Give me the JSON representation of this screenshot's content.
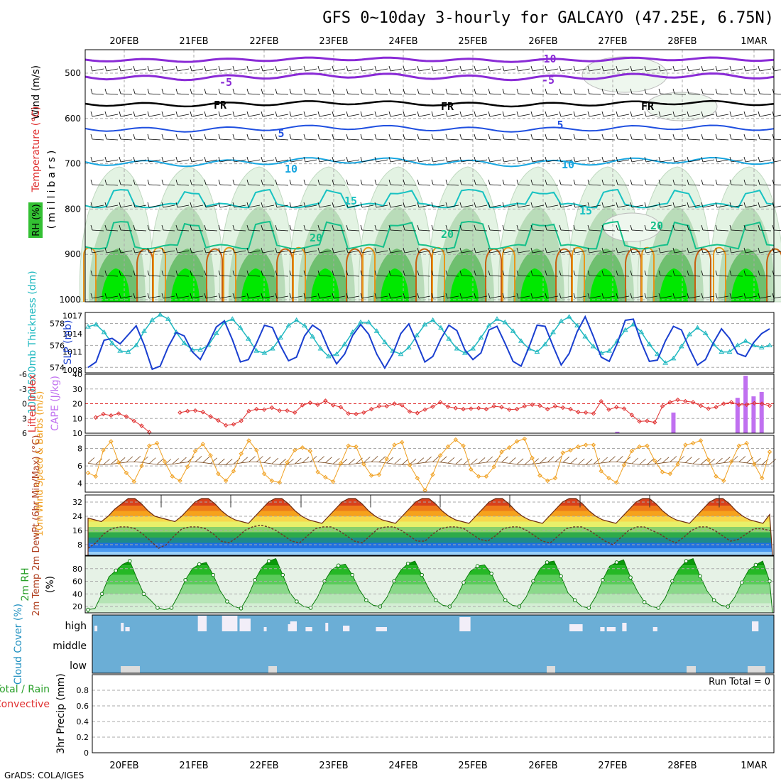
{
  "title": "GFS 0~10day 3-hourly for GALCAYO (47.25E, 6.75N)",
  "credit": "GrADS: COLA/IGES",
  "date_labels": [
    "20FEB",
    "21FEB",
    "22FEB",
    "23FEB",
    "24FEB",
    "25FEB",
    "26FEB",
    "27FEB",
    "28FEB",
    "1MAR"
  ],
  "colors": {
    "rh_light": "#e3f3e3",
    "rh_mid": "#b9dcb9",
    "rh_dark": "#6fbf6f",
    "rh_bright": "#00e800",
    "purple": "#8a2bd6",
    "black": "#000000",
    "blue": "#1f4fe0",
    "lightblue": "#18a6e0",
    "teal": "#18c2c2",
    "seagreen": "#16c08a",
    "orange": "#e8961a",
    "darkorange": "#c86010",
    "thickness": "#1fb8c0",
    "slp": "#1a3fd0",
    "lifted": "#e03030",
    "cape": "#c070f0",
    "wind": "#f0a020",
    "cloud_bg": "#6baed6",
    "precip_grid": "#aaaaaa"
  },
  "panels": {
    "pressure": {
      "ylabel_wind": "Wind (m/s)",
      "ylabel_temp": "Temperature (°C)",
      "ylabel_mb": "(millibars)",
      "ylabel_rh": "RH (%)",
      "ticks": [
        "500",
        "600",
        "700",
        "800",
        "900",
        "1000"
      ],
      "contour_labels": [
        "-10",
        "-5",
        "-5",
        "FR",
        "FR",
        "FR",
        "5",
        "5",
        "10",
        "10",
        "15",
        "15",
        "20",
        "20",
        "20"
      ]
    },
    "thickness": {
      "ylabel_left": "1000-500mb Thickness (dm)",
      "ylabel_right": "SLP (mb)",
      "left_ticks": [
        "578",
        "576",
        "574"
      ],
      "right_ticks": [
        "1017",
        "1014",
        "1011",
        "1008"
      ]
    },
    "stability": {
      "ylabel_left": "Lifted Index",
      "ylabel_right": "CAPE (J/kg)",
      "left_ticks": [
        "-6",
        "-3",
        "0",
        "3",
        "6"
      ],
      "right_ticks": [
        "40",
        "30",
        "20",
        "10",
        "10"
      ]
    },
    "wind10": {
      "ylabel": "10m Wind Speed & Barbs (m/s)",
      "ticks": [
        "8",
        "6",
        "4"
      ]
    },
    "temp2m": {
      "ylabel": "2m Temp 2m DewPt (6hr Min/Max) (°C)",
      "ticks": [
        "32",
        "24",
        "16",
        "8"
      ]
    },
    "rh2m": {
      "ylabel_left": "2m RH",
      "ylabel_right": "(%)",
      "ticks": [
        "80",
        "60",
        "40",
        "20"
      ]
    },
    "cloud": {
      "ylabel": "Cloud Cover (%)",
      "levels": [
        "high",
        "middle",
        "low"
      ]
    },
    "precip": {
      "ylabel_a": "Total / Rain",
      "ylabel_b": "Convective",
      "ylabel_c": "3hr Precip (mm)",
      "ticks": [
        "0.8",
        "0.6",
        "0.4",
        "0.2",
        "0"
      ],
      "run_total": "Run Total = 0"
    }
  },
  "chart_data": [
    {
      "type": "line",
      "name": "1000-500mb Thickness (dm)",
      "x_unit": "3-hourly steps from 19FEB 12Z",
      "ylim": [
        573.5,
        579
      ],
      "values": [
        577.7,
        577.9,
        577.2,
        576.2,
        575.5,
        575.4,
        576.0,
        577.3,
        578.3,
        578.8,
        578.4,
        577.2,
        576.2,
        575.6,
        575.6,
        576.0,
        577.1,
        578.1,
        578.4,
        577.6,
        576.6,
        575.5,
        575.3,
        575.7,
        576.7,
        577.8,
        578.3,
        577.8,
        576.8,
        575.7,
        575.0,
        575.2,
        576.1,
        577.2,
        578.1,
        578.1,
        577.3,
        576.3,
        575.5,
        575.2,
        575.8,
        576.9,
        577.9,
        578.3,
        577.6,
        576.6,
        575.7,
        575.3,
        575.7,
        576.7,
        577.8,
        578.4,
        578.1,
        577.3,
        576.4,
        575.7,
        575.4,
        576.1,
        577.2,
        578.2,
        578.6,
        577.8,
        576.8,
        575.9,
        575.3,
        575.5,
        576.4,
        577.4,
        577.9,
        577.2,
        576.1,
        575.2,
        574.4,
        574.8,
        575.9,
        577.0,
        577.6,
        577.1,
        576.1,
        575.4,
        575.4,
        576.0,
        576.4,
        576.0,
        575.8,
        576.0
      ]
    },
    {
      "type": "line",
      "name": "SLP (mb)",
      "ylim": [
        1007.5,
        1017.5
      ],
      "values": [
        1008.4,
        1009.3,
        1012.9,
        1013.2,
        1012.3,
        1013.8,
        1015.3,
        1012.1,
        1008.1,
        1008.6,
        1011.8,
        1014.2,
        1013.6,
        1011.0,
        1009.7,
        1012.3,
        1015.1,
        1016.1,
        1013.0,
        1009.3,
        1009.7,
        1012.4,
        1015.4,
        1015.0,
        1012.0,
        1009.5,
        1010.1,
        1013.6,
        1015.4,
        1014.5,
        1011.4,
        1009.0,
        1010.6,
        1013.7,
        1015.5,
        1013.9,
        1010.6,
        1008.3,
        1010.6,
        1014.0,
        1015.6,
        1012.5,
        1009.3,
        1010.2,
        1013.1,
        1015.4,
        1014.5,
        1011.3,
        1009.7,
        1010.8,
        1014.6,
        1015.2,
        1012.4,
        1009.4,
        1008.6,
        1011.8,
        1015.4,
        1015.2,
        1011.9,
        1008.8,
        1010.7,
        1014.3,
        1016.8,
        1013.6,
        1010.1,
        1009.4,
        1012.4,
        1016.2,
        1016.4,
        1012.5,
        1009.4,
        1009.6,
        1012.8,
        1015.2,
        1014.6,
        1011.5,
        1008.8,
        1009.7,
        1012.5,
        1014.8,
        1013.2,
        1010.7,
        1010.2,
        1012.5,
        1014.0,
        1014.8
      ]
    },
    {
      "type": "line",
      "name": "Lifted Index",
      "ylim": [
        6,
        -6
      ],
      "values": [
        null,
        2.8,
        2.1,
        2.4,
        2.0,
        2.6,
        3.5,
        4.5,
        5.8,
        null,
        null,
        null,
        1.8,
        1.5,
        1.4,
        1.7,
        2.6,
        3.4,
        4.4,
        4.2,
        3.5,
        1.5,
        1.1,
        1.2,
        0.8,
        1.4,
        1.4,
        1.8,
        0.3,
        -0.2,
        0.2,
        -0.6,
        0.3,
        0.7,
        2.0,
        2.1,
        1.8,
        1.1,
        0.5,
        0.5,
        0.0,
        0.3,
        1.6,
        1.9,
        1.2,
        0.6,
        -0.3,
        0.6,
        0.9,
        1.1,
        1.0,
        0.9,
        1.1,
        0.5,
        0.7,
        1.2,
        1.1,
        0.5,
        0.2,
        0.4,
        1.1,
        0.5,
        0.8,
        1.1,
        1.7,
        1.8,
        2.0,
        -0.5,
        1.2,
        0.7,
        1.0,
        2.3,
        3.6,
        3.5,
        3.8,
        0.5,
        -0.3,
        -0.8,
        -0.5,
        -0.3,
        0.4,
        1.0,
        0.7,
        0.0,
        -0.3,
        0.2,
        0.2,
        -0.1,
        0.0,
        0.4
      ]
    },
    {
      "type": "bar",
      "name": "CAPE (J/kg)",
      "x": [
        66,
        73,
        81,
        82,
        83,
        84,
        85
      ],
      "values": [
        1,
        14,
        24,
        39,
        25,
        28,
        0
      ]
    },
    {
      "type": "line",
      "name": "10m Wind Speed (m/s)",
      "ylim": [
        3,
        9.5
      ],
      "values": [
        5.2,
        4.8,
        7.8,
        8.8,
        6.4,
        5.2,
        4.2,
        6.0,
        8.3,
        8.6,
        6.5,
        4.8,
        4.3,
        5.9,
        7.7,
        8.5,
        7.2,
        5.1,
        4.3,
        5.4,
        7.4,
        8.9,
        7.8,
        5.1,
        4.3,
        4.1,
        6.4,
        7.8,
        8.1,
        7.7,
        5.3,
        4.7,
        4.2,
        6.3,
        8.3,
        8.2,
        6.2,
        4.9,
        5.0,
        6.8,
        8.4,
        8.7,
        6.1,
        4.6,
        3.2,
        5.0,
        7.2,
        8.2,
        9.0,
        8.3,
        5.6,
        4.8,
        4.8,
        5.9,
        7.6,
        8.1,
        8.8,
        9.1,
        6.9,
        4.9,
        4.3,
        4.6,
        7.5,
        7.8,
        8.2,
        8.4,
        8.4,
        5.4,
        4.6,
        4.1,
        6.1,
        7.7,
        8.2,
        8.3,
        6.6,
        5.3,
        5.1,
        6.2,
        8.4,
        8.6,
        8.9,
        6.7,
        4.8,
        4.3,
        6.5,
        8.3,
        8.6,
        6.2,
        4.6,
        7.6
      ]
    },
    {
      "type": "area",
      "name": "2m Temp (°C)",
      "ylim": [
        2,
        36
      ],
      "values": [
        23,
        22,
        21,
        24,
        28,
        31,
        34,
        34,
        31,
        27,
        24,
        23,
        22,
        21,
        24,
        28,
        32,
        34,
        34,
        31,
        27,
        24,
        22,
        21,
        20,
        24,
        28,
        32,
        34,
        34,
        31,
        27,
        24,
        22,
        21,
        20,
        24,
        28,
        32,
        34,
        34,
        31,
        27,
        24,
        22,
        21,
        20,
        24,
        28,
        32,
        34,
        34,
        31,
        27,
        24,
        22,
        21,
        20,
        24,
        28,
        32,
        34,
        34,
        31,
        27,
        24,
        22,
        21,
        20,
        24,
        28,
        32,
        34,
        34,
        31,
        27,
        24,
        22,
        21,
        20,
        24,
        28,
        32,
        34,
        34,
        31,
        27,
        24,
        22,
        21,
        20,
        24,
        28,
        32,
        34,
        34,
        31,
        27,
        24,
        22,
        21,
        20,
        25
      ]
    },
    {
      "type": "line",
      "name": "2m DewPt (°C)",
      "ylim": [
        2,
        36
      ],
      "values": [
        6,
        9,
        14,
        17,
        18,
        18,
        17,
        14,
        10,
        6,
        8,
        13,
        17,
        18,
        18,
        17,
        14,
        10,
        9,
        12,
        16,
        18,
        19,
        18,
        16,
        13,
        10,
        9,
        13,
        17,
        18,
        18,
        16,
        13,
        10,
        9,
        13,
        17,
        18,
        18,
        16,
        13,
        10,
        10,
        14,
        17,
        18,
        18,
        17,
        14,
        11,
        10,
        13,
        17,
        18,
        18,
        16,
        13,
        10,
        9,
        13,
        17,
        18,
        18,
        16,
        13,
        10,
        8,
        12,
        16,
        18,
        18,
        16,
        14,
        11,
        9,
        12,
        16,
        18,
        18,
        16,
        13,
        10,
        11,
        14,
        17,
        17,
        16
      ]
    },
    {
      "type": "area",
      "name": "2m RH (%)",
      "ylim": [
        10,
        100
      ],
      "values": [
        15,
        17,
        40,
        67,
        77,
        87,
        92,
        65,
        40,
        30,
        18,
        15,
        18,
        38,
        62,
        80,
        87,
        90,
        70,
        45,
        28,
        20,
        17,
        36,
        62,
        82,
        92,
        96,
        70,
        42,
        28,
        20,
        18,
        35,
        60,
        78,
        85,
        87,
        70,
        47,
        30,
        22,
        20,
        35,
        60,
        78,
        88,
        92,
        70,
        48,
        30,
        22,
        20,
        35,
        58,
        76,
        84,
        86,
        72,
        48,
        30,
        22,
        20,
        35,
        60,
        80,
        90,
        92,
        68,
        42,
        30,
        20,
        18,
        36,
        62,
        84,
        90,
        94,
        66,
        44,
        27,
        20,
        18,
        34,
        60,
        80,
        92,
        96,
        68,
        45,
        30,
        22,
        20,
        35,
        58,
        78,
        86,
        92,
        60
      ]
    },
    {
      "type": "bar",
      "name": "Cloud Cover high (%)",
      "segments": [
        [
          1,
          2
        ],
        [
          13,
          14
        ],
        [
          15,
          17
        ],
        [
          48,
          52
        ],
        [
          59,
          66
        ],
        [
          67,
          72
        ],
        [
          78,
          79
        ],
        [
          89,
          90
        ],
        [
          90,
          93
        ],
        [
          97,
          100
        ],
        [
          106,
          107
        ],
        [
          114,
          117
        ],
        [
          129,
          134
        ],
        [
          167,
          172
        ],
        [
          217,
          223
        ],
        [
          231,
          233
        ],
        [
          234,
          238
        ],
        [
          241,
          243
        ],
        [
          255,
          257
        ],
        [
          300,
          303
        ]
      ],
      "note": "relative segments only"
    },
    {
      "type": "bar",
      "name": "3hr Precip (mm)",
      "ylim": [
        0,
        1
      ],
      "values": [
        0
      ]
    }
  ]
}
